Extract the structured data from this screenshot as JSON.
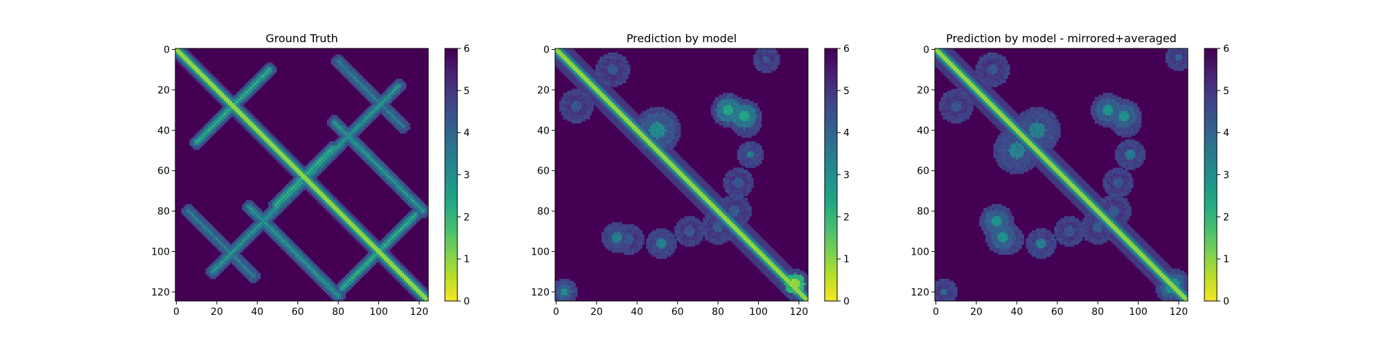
{
  "figure": {
    "background": "#ffffff"
  },
  "chart_data": [
    {
      "type": "heatmap",
      "title": "Ground Truth",
      "xlabel": "",
      "ylabel": "",
      "size": 125,
      "xlim": [
        0,
        124
      ],
      "ylim": [
        124,
        0
      ],
      "xticks": [
        0,
        20,
        40,
        60,
        80,
        100,
        120
      ],
      "yticks": [
        0,
        20,
        40,
        60,
        80,
        100,
        120
      ],
      "colorbar": {
        "ticks": [
          0,
          1,
          2,
          3,
          4,
          5,
          6
        ],
        "range": [
          0,
          6
        ],
        "colormap": "viridis_r"
      },
      "structure": {
        "diagonal": true,
        "bands": [
          {
            "center": [
              28,
              28
            ],
            "direction": "anti",
            "half_length": 18,
            "value": 2
          },
          {
            "center": [
              100,
              100
            ],
            "direction": "anti",
            "half_length": 18,
            "value": 2
          },
          {
            "center": [
              63,
              63
            ],
            "direction": "anti",
            "half_length": 14,
            "value": 2
          },
          {
            "center": [
              40,
              88
            ],
            "direction": "anti",
            "half_length": 22,
            "value": 2.5
          },
          {
            "center": [
              88,
              40
            ],
            "direction": "anti",
            "half_length": 22,
            "value": 2.5
          },
          {
            "center": [
              58,
              100
            ],
            "direction": "diag",
            "half_length": 22,
            "value": 2.5
          },
          {
            "center": [
              100,
              58
            ],
            "direction": "diag",
            "half_length": 22,
            "value": 2.5
          },
          {
            "center": [
              22,
              96
            ],
            "direction": "diag",
            "half_length": 16,
            "value": 3
          },
          {
            "center": [
              96,
              22
            ],
            "direction": "diag",
            "half_length": 16,
            "value": 3
          }
        ]
      }
    },
    {
      "type": "heatmap",
      "title": "Prediction by model",
      "xlabel": "",
      "ylabel": "",
      "size": 125,
      "xlim": [
        0,
        124
      ],
      "ylim": [
        124,
        0
      ],
      "xticks": [
        0,
        20,
        40,
        60,
        80,
        100,
        120
      ],
      "yticks": [
        0,
        20,
        40,
        60,
        80,
        100,
        120
      ],
      "colorbar": {
        "ticks": [
          0,
          1,
          2,
          3,
          4,
          5,
          6
        ],
        "range": [
          0,
          6
        ],
        "colormap": "viridis_r"
      },
      "structure": {
        "diagonal": true,
        "blobs": [
          {
            "center": [
              40,
              50
            ],
            "radius": 9,
            "value": 3.2
          },
          {
            "center": [
              30,
              85
            ],
            "radius": 6,
            "value": 2.5
          },
          {
            "center": [
              33,
              93
            ],
            "radius": 6,
            "value": 2.5
          },
          {
            "center": [
              93,
              30
            ],
            "radius": 5,
            "value": 3.5
          },
          {
            "center": [
              96,
              52
            ],
            "radius": 5,
            "value": 3.5
          },
          {
            "center": [
              52,
              96
            ],
            "radius": 4,
            "value": 3.5
          },
          {
            "center": [
              10,
              28
            ],
            "radius": 6,
            "value": 4.4
          },
          {
            "center": [
              28,
              10
            ],
            "radius": 6,
            "value": 4.4
          },
          {
            "center": [
              94,
              36
            ],
            "radius": 5,
            "value": 4.4
          },
          {
            "center": [
              36,
              94
            ],
            "radius": 5,
            "value": 4.4
          },
          {
            "center": [
              88,
              80
            ],
            "radius": 6,
            "value": 4.3
          },
          {
            "center": [
              80,
              88
            ],
            "radius": 6,
            "value": 4.3
          },
          {
            "center": [
              66,
              90
            ],
            "radius": 5,
            "value": 4.4
          },
          {
            "center": [
              90,
              66
            ],
            "radius": 5,
            "value": 4.4
          },
          {
            "center": [
              116,
              118
            ],
            "radius": 5,
            "value": 1.0
          },
          {
            "center": [
              120,
              4
            ],
            "radius": 4,
            "value": 3.0
          },
          {
            "center": [
              5,
              104
            ],
            "radius": 4,
            "value": 4.4
          }
        ]
      }
    },
    {
      "type": "heatmap",
      "title": "Prediction by model - mirrored+averaged",
      "xlabel": "",
      "ylabel": "",
      "size": 125,
      "xlim": [
        0,
        124
      ],
      "ylim": [
        124,
        0
      ],
      "xticks": [
        0,
        20,
        40,
        60,
        80,
        100,
        120
      ],
      "yticks": [
        0,
        20,
        40,
        60,
        80,
        100,
        120
      ],
      "colorbar": {
        "ticks": [
          0,
          1,
          2,
          3,
          4,
          5,
          6
        ],
        "range": [
          0,
          6
        ],
        "colormap": "viridis_r"
      },
      "structure": {
        "diagonal": true,
        "symmetric": true,
        "blobs": [
          {
            "center": [
              40,
              50
            ],
            "radius": 9,
            "value": 3.4
          },
          {
            "center": [
              30,
              85
            ],
            "radius": 6,
            "value": 3.0
          },
          {
            "center": [
              33,
              93
            ],
            "radius": 6,
            "value": 3.0
          },
          {
            "center": [
              96,
              52
            ],
            "radius": 5,
            "value": 3.6
          },
          {
            "center": [
              10,
              28
            ],
            "radius": 6,
            "value": 4.4
          },
          {
            "center": [
              94,
              36
            ],
            "radius": 5,
            "value": 4.4
          },
          {
            "center": [
              88,
              80
            ],
            "radius": 6,
            "value": 4.3
          },
          {
            "center": [
              66,
              90
            ],
            "radius": 5,
            "value": 4.4
          },
          {
            "center": [
              116,
              118
            ],
            "radius": 5,
            "value": 3.0
          },
          {
            "center": [
              120,
              4
            ],
            "radius": 4,
            "value": 4.0
          }
        ]
      }
    }
  ]
}
